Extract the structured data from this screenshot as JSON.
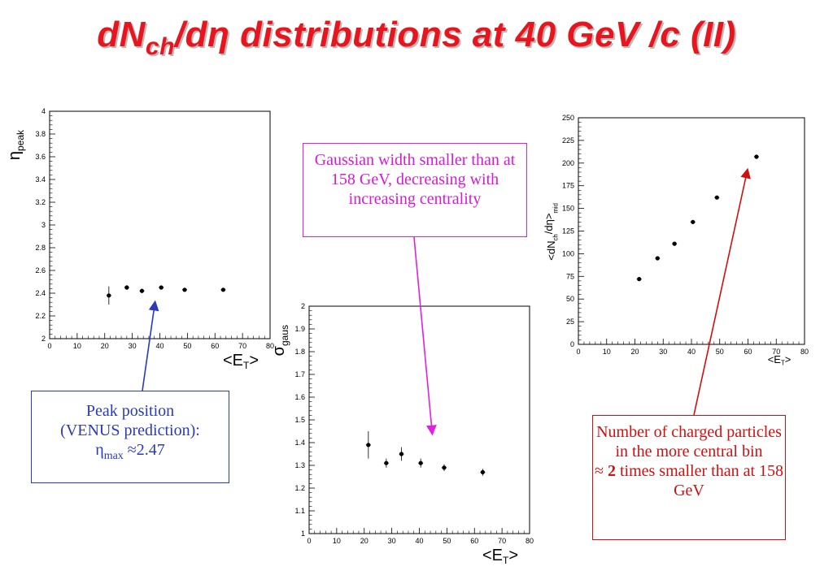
{
  "title": {
    "pre": "dN",
    "sub": "ch",
    "post": "/dη distributions at 40 GeV /c (II)"
  },
  "chart_data": [
    {
      "type": "scatter",
      "ylabel": "η",
      "ylabel_sub": "peak",
      "xlabel": "<E",
      "xlabel_sub": "T",
      "xlabel_end": ">",
      "xlim": [
        0,
        80
      ],
      "ylim": [
        2,
        4
      ],
      "xticks": [
        0,
        10,
        20,
        30,
        40,
        50,
        60,
        70,
        80
      ],
      "yticks": [
        2,
        2.2,
        2.4,
        2.6,
        2.8,
        3,
        3.2,
        3.4,
        3.6,
        3.8,
        4
      ],
      "points": [
        {
          "x": 21.5,
          "y": 2.38,
          "err": 0.08
        },
        {
          "x": 28,
          "y": 2.45,
          "err": 0.02
        },
        {
          "x": 33.5,
          "y": 2.42,
          "err": 0.02
        },
        {
          "x": 40.5,
          "y": 2.45,
          "err": 0.01
        },
        {
          "x": 49,
          "y": 2.43,
          "err": 0.01
        },
        {
          "x": 63,
          "y": 2.43,
          "err": 0.01
        }
      ]
    },
    {
      "type": "scatter",
      "ylabel": "σ",
      "ylabel_sub": "gaus",
      "xlabel": "<E",
      "xlabel_sub": "T",
      "xlabel_end": ">",
      "xlim": [
        0,
        80
      ],
      "ylim": [
        1,
        2
      ],
      "xticks": [
        0,
        10,
        20,
        30,
        40,
        50,
        60,
        70,
        80
      ],
      "yticks": [
        1,
        1.1,
        1.2,
        1.3,
        1.4,
        1.5,
        1.6,
        1.7,
        1.8,
        1.9,
        2
      ],
      "points": [
        {
          "x": 21.5,
          "y": 1.39,
          "err": 0.06
        },
        {
          "x": 28,
          "y": 1.31,
          "err": 0.02
        },
        {
          "x": 33.5,
          "y": 1.35,
          "err": 0.03
        },
        {
          "x": 40.5,
          "y": 1.31,
          "err": 0.02
        },
        {
          "x": 49,
          "y": 1.29,
          "err": 0.015
        },
        {
          "x": 63,
          "y": 1.27,
          "err": 0.015
        }
      ]
    },
    {
      "type": "scatter",
      "ylabel": "<dN",
      "ylabel_sub": "ch",
      "ylabel_mid": "/dη>",
      "ylabel_sub2": "mid",
      "xlabel": "<E",
      "xlabel_sub": "T",
      "xlabel_end": ">",
      "xlim": [
        0,
        80
      ],
      "ylim": [
        0,
        250
      ],
      "xticks": [
        0,
        10,
        20,
        30,
        40,
        50,
        60,
        70,
        80
      ],
      "yticks": [
        0,
        25,
        50,
        75,
        100,
        125,
        150,
        175,
        200,
        225,
        250
      ],
      "points": [
        {
          "x": 21.5,
          "y": 72,
          "err": 0
        },
        {
          "x": 28,
          "y": 95,
          "err": 0
        },
        {
          "x": 34,
          "y": 111,
          "err": 0
        },
        {
          "x": 40.5,
          "y": 135,
          "err": 0
        },
        {
          "x": 49,
          "y": 162,
          "err": 0
        },
        {
          "x": 63,
          "y": 207,
          "err": 0
        }
      ]
    }
  ],
  "notes": {
    "peak": {
      "line1": "Peak position",
      "line2": "(VENUS prediction):",
      "sym": "η",
      "sub": "max",
      "val": " ≈2.47"
    },
    "gaus": {
      "text": "Gaussian width smaller than at 158 GeV, decreasing with increasing centrality"
    },
    "nch": {
      "line1": "Number of charged particles in the more central bin",
      "approx": "≈ ",
      "bold": "2",
      "rest": " times smaller than at 158 GeV"
    }
  },
  "colors": {
    "title": "#e8141e",
    "peak": "#2a3ab8",
    "gaus": "#e020e0",
    "nch": "#cc1111"
  }
}
